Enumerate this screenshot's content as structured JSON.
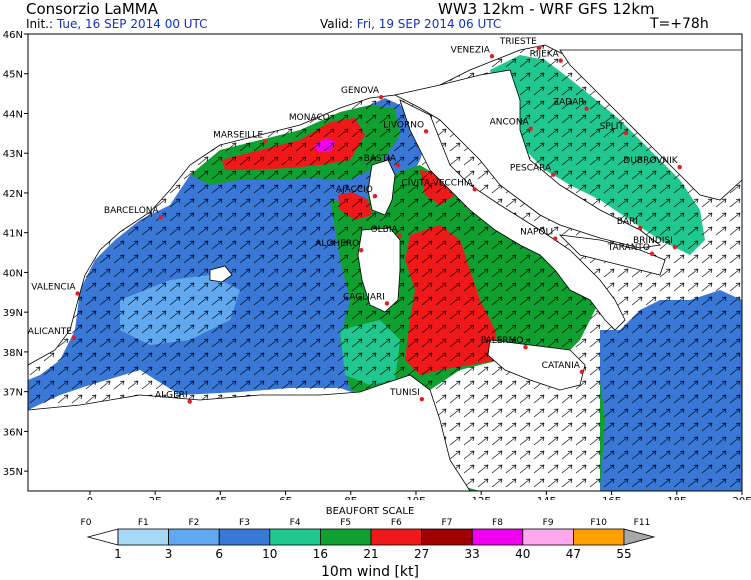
{
  "header": {
    "org": "Consorzio LaMMA",
    "model": "WW3 12km - WRF GFS 12km",
    "init_label": "Init.:",
    "init_value": "Tue, 16 SEP 2014  00 UTC",
    "valid_label": "Valid:",
    "valid_value": "Fri, 19 SEP 2014  06 UTC",
    "step": "T=+78h"
  },
  "map": {
    "lat_labels": [
      "46N",
      "45N",
      "44N",
      "43N",
      "42N",
      "41N",
      "40N",
      "39N",
      "38N",
      "37N",
      "36N",
      "35N"
    ],
    "lat_values": [
      46,
      45,
      44,
      43,
      42,
      41,
      40,
      39,
      38,
      37,
      36,
      35
    ],
    "lon_labels": [
      "0",
      "2E",
      "4E",
      "6E",
      "8E",
      "10E",
      "12E",
      "14E",
      "16E",
      "18E",
      "20E"
    ],
    "lon_values": [
      0,
      2,
      4,
      6,
      8,
      10,
      12,
      14,
      16,
      18,
      20
    ],
    "extent": {
      "lon_min": -1.9,
      "lon_max": 20,
      "lat_min": 34.5,
      "lat_max": 46
    },
    "cities": [
      {
        "name": "TRIESTE",
        "lon": 13.77,
        "lat": 45.65
      },
      {
        "name": "VENEZIA",
        "lon": 12.33,
        "lat": 45.44
      },
      {
        "name": "RIJEKA",
        "lon": 14.44,
        "lat": 45.33
      },
      {
        "name": "GENOVA",
        "lon": 8.93,
        "lat": 44.41
      },
      {
        "name": "MONACO",
        "lon": 7.42,
        "lat": 43.74
      },
      {
        "name": "MARSEILLE",
        "lon": 5.37,
        "lat": 43.3
      },
      {
        "name": "LIVORNO",
        "lon": 10.31,
        "lat": 43.55
      },
      {
        "name": "ANCONA",
        "lon": 13.52,
        "lat": 43.62
      },
      {
        "name": "ZADAR",
        "lon": 15.23,
        "lat": 44.12
      },
      {
        "name": "SPLIT",
        "lon": 16.44,
        "lat": 43.51
      },
      {
        "name": "DUBROVNIK",
        "lon": 18.09,
        "lat": 42.65
      },
      {
        "name": "BASTIA",
        "lon": 9.45,
        "lat": 42.7
      },
      {
        "name": "AJACCIO",
        "lon": 8.74,
        "lat": 41.92
      },
      {
        "name": "PESCARA",
        "lon": 14.21,
        "lat": 42.46
      },
      {
        "name": "CIVITA-VECCHIA",
        "lon": 11.8,
        "lat": 42.09
      },
      {
        "name": "BARCELONA",
        "lon": 2.17,
        "lat": 41.39
      },
      {
        "name": "OLBIA",
        "lon": 9.5,
        "lat": 40.92
      },
      {
        "name": "ALGHERO",
        "lon": 8.32,
        "lat": 40.56
      },
      {
        "name": "NAPOLI",
        "lon": 14.27,
        "lat": 40.85
      },
      {
        "name": "BARI",
        "lon": 16.87,
        "lat": 41.12
      },
      {
        "name": "BRINDISI",
        "lon": 17.94,
        "lat": 40.64
      },
      {
        "name": "TARANTO",
        "lon": 17.24,
        "lat": 40.47
      },
      {
        "name": "VALENCIA",
        "lon": -0.38,
        "lat": 39.47
      },
      {
        "name": "CAGLIARI",
        "lon": 9.11,
        "lat": 39.22
      },
      {
        "name": "ALICANTE",
        "lon": -0.49,
        "lat": 38.35
      },
      {
        "name": "PALERMO",
        "lon": 13.36,
        "lat": 38.12
      },
      {
        "name": "CATANIA",
        "lon": 15.09,
        "lat": 37.5
      },
      {
        "name": "TUNISI",
        "lon": 10.18,
        "lat": 36.81
      },
      {
        "name": "ALGERI",
        "lon": 3.06,
        "lat": 36.75
      }
    ]
  },
  "legend": {
    "title": "BEAUFORT SCALE",
    "beaufort_labels": [
      "F0",
      "F1",
      "F2",
      "F3",
      "F4",
      "F5",
      "F6",
      "F7",
      "F8",
      "F9",
      "F10",
      "F11"
    ],
    "kt_labels": [
      "1",
      "3",
      "6",
      "10",
      "16",
      "21",
      "27",
      "33",
      "40",
      "47",
      "55"
    ],
    "colors": [
      "#ffffff",
      "#a8d8f8",
      "#60a8f0",
      "#3a78d8",
      "#20c890",
      "#10a030",
      "#f01818",
      "#a00000",
      "#f000f0",
      "#ffa8f0",
      "#ffa000",
      "#a8a8a8"
    ],
    "units": "10m wind [kt]"
  },
  "colors": {
    "land": "#ffffff",
    "coast": "#000000",
    "city": "#e02020",
    "frame": "#000000"
  }
}
